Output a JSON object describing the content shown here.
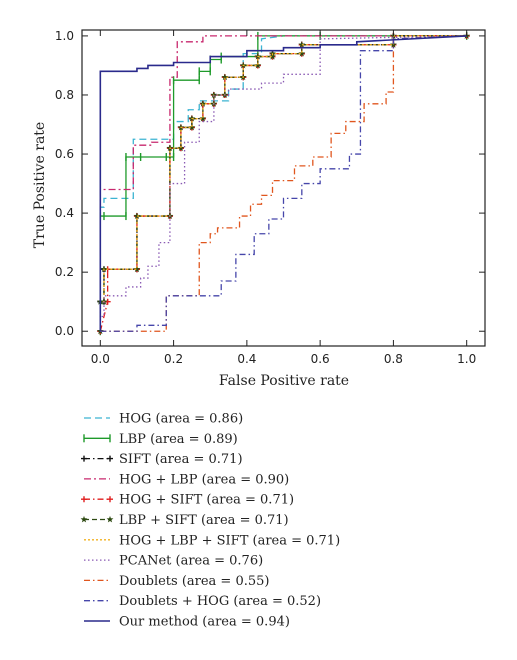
{
  "chart_data": {
    "type": "line",
    "title": "",
    "xlabel": "False Positive rate",
    "ylabel": "True Positive rate",
    "xlim": [
      -0.05,
      1.05
    ],
    "ylim": [
      -0.05,
      1.02
    ],
    "xticks": [
      "0.0",
      "0.2",
      "0.4",
      "0.6",
      "0.8",
      "1.0"
    ],
    "yticks": [
      "0.0",
      "0.2",
      "0.4",
      "0.6",
      "0.8",
      "1.0"
    ],
    "grid": false,
    "legend_position": "below",
    "series": [
      {
        "name": "HOG (area  =  0.86)",
        "color": "#3cb4d2",
        "dash": "7,4",
        "marker": "none",
        "x": [
          0,
          0,
          0.01,
          0.01,
          0.09,
          0.09,
          0.18,
          0.2,
          0.2,
          0.24,
          0.24,
          0.27,
          0.27,
          0.35,
          0.35,
          0.39,
          0.39,
          0.44,
          0.44,
          0.5,
          1.0
        ],
        "y": [
          0,
          0.42,
          0.42,
          0.45,
          0.45,
          0.65,
          0.65,
          0.65,
          0.71,
          0.71,
          0.75,
          0.75,
          0.78,
          0.78,
          0.82,
          0.82,
          0.94,
          0.94,
          0.99,
          1.0,
          1.0
        ]
      },
      {
        "name": "LBP (area  =  0.89)",
        "color": "#1e9a2a",
        "dash": "",
        "marker": "bar",
        "x": [
          0,
          0,
          0.01,
          0.01,
          0.07,
          0.07,
          0.11,
          0.11,
          0.18,
          0.2,
          0.2,
          0.27,
          0.27,
          0.3,
          0.3,
          0.33,
          0.33,
          0.43,
          0.43,
          0.6,
          1.0
        ],
        "y": [
          0,
          0.39,
          0.39,
          0.39,
          0.39,
          0.59,
          0.59,
          0.59,
          0.59,
          0.59,
          0.85,
          0.85,
          0.88,
          0.88,
          0.92,
          0.92,
          0.93,
          0.93,
          1.0,
          1.0,
          1.0
        ]
      },
      {
        "name": "SIFT (area  =  0.71)",
        "color": "#111111",
        "dash": "6,3,1.5,3",
        "marker": "plus",
        "x": [
          0,
          0,
          0.01,
          0.01,
          0.1,
          0.1,
          0.19,
          0.19,
          0.22,
          0.22,
          0.25,
          0.25,
          0.28,
          0.28,
          0.31,
          0.31,
          0.34,
          0.34,
          0.39,
          0.39,
          0.43,
          0.43,
          0.47,
          0.47,
          0.55,
          0.55,
          0.8,
          0.8,
          1.0
        ],
        "y": [
          0,
          0.1,
          0.1,
          0.21,
          0.21,
          0.39,
          0.39,
          0.62,
          0.62,
          0.69,
          0.69,
          0.72,
          0.72,
          0.77,
          0.77,
          0.8,
          0.8,
          0.86,
          0.86,
          0.9,
          0.9,
          0.93,
          0.93,
          0.94,
          0.94,
          0.97,
          0.97,
          1.0,
          1.0
        ]
      },
      {
        "name": "HOG + LBP (area  =  0.90)",
        "color": "#c8286e",
        "dash": "7,3,2,3",
        "marker": "none",
        "x": [
          0,
          0,
          0.02,
          0.02,
          0.09,
          0.09,
          0.14,
          0.14,
          0.19,
          0.19,
          0.21,
          0.21,
          0.28,
          0.28,
          0.45,
          1.0
        ],
        "y": [
          0,
          0.48,
          0.48,
          0.48,
          0.48,
          0.63,
          0.63,
          0.64,
          0.64,
          0.86,
          0.86,
          0.98,
          0.98,
          1.0,
          1.0,
          1.0
        ]
      },
      {
        "name": "HOG + SIFT (area  =  0.71)",
        "color": "#e01e1e",
        "dash": "6,3,1.5,3",
        "marker": "plus",
        "x": [
          0,
          0.02,
          0.02,
          0.1,
          0.1,
          0.19,
          0.19,
          0.22,
          0.22,
          0.25,
          0.25,
          0.28,
          0.28,
          0.31,
          0.31,
          0.34,
          0.34,
          0.39,
          0.39,
          0.43,
          0.43,
          0.47,
          0.47,
          0.55,
          0.55,
          0.8,
          0.8,
          1.0
        ],
        "y": [
          0,
          0.1,
          0.21,
          0.21,
          0.39,
          0.39,
          0.62,
          0.62,
          0.69,
          0.69,
          0.72,
          0.72,
          0.77,
          0.77,
          0.8,
          0.8,
          0.86,
          0.86,
          0.9,
          0.9,
          0.93,
          0.93,
          0.94,
          0.94,
          0.97,
          0.97,
          1.0,
          1.0
        ]
      },
      {
        "name": "LBP + SIFT (area  =  0.71)",
        "color": "#2e4a12",
        "dash": "5,3",
        "marker": "star",
        "x": [
          0,
          0,
          0.01,
          0.01,
          0.1,
          0.1,
          0.19,
          0.19,
          0.22,
          0.22,
          0.25,
          0.25,
          0.28,
          0.28,
          0.31,
          0.31,
          0.34,
          0.34,
          0.39,
          0.39,
          0.43,
          0.43,
          0.47,
          0.47,
          0.55,
          0.55,
          0.8,
          0.8,
          1.0
        ],
        "y": [
          0,
          0.1,
          0.1,
          0.21,
          0.21,
          0.39,
          0.39,
          0.62,
          0.62,
          0.69,
          0.69,
          0.72,
          0.72,
          0.77,
          0.77,
          0.8,
          0.8,
          0.86,
          0.86,
          0.9,
          0.9,
          0.93,
          0.93,
          0.94,
          0.94,
          0.97,
          0.97,
          1.0,
          1.0
        ]
      },
      {
        "name": "HOG + LBP + SIFT (area  =  0.71)",
        "color": "#f2b01e",
        "dash": "2,2",
        "marker": "none",
        "x": [
          0,
          0,
          0.01,
          0.01,
          0.1,
          0.1,
          0.19,
          0.19,
          0.22,
          0.22,
          0.25,
          0.25,
          0.28,
          0.28,
          0.31,
          0.31,
          0.34,
          0.34,
          0.39,
          0.39,
          0.43,
          0.43,
          0.47,
          0.47,
          0.55,
          0.55,
          0.8,
          0.8,
          1.0
        ],
        "y": [
          0,
          0.1,
          0.1,
          0.21,
          0.21,
          0.39,
          0.39,
          0.62,
          0.62,
          0.69,
          0.69,
          0.72,
          0.72,
          0.77,
          0.77,
          0.8,
          0.8,
          0.86,
          0.86,
          0.9,
          0.9,
          0.93,
          0.93,
          0.94,
          0.94,
          0.97,
          0.97,
          1.0,
          1.0
        ]
      },
      {
        "name": "PCANet (area  =  0.76)",
        "color": "#8a5ab4",
        "dash": "1.5,2.5",
        "marker": "none",
        "x": [
          0,
          0,
          0.01,
          0.01,
          0.07,
          0.07,
          0.11,
          0.11,
          0.13,
          0.13,
          0.16,
          0.16,
          0.19,
          0.19,
          0.23,
          0.23,
          0.27,
          0.27,
          0.31,
          0.31,
          0.35,
          0.35,
          0.44,
          0.44,
          0.5,
          0.5,
          0.6,
          0.6,
          1.0
        ],
        "y": [
          0,
          0.05,
          0.05,
          0.12,
          0.12,
          0.15,
          0.15,
          0.18,
          0.18,
          0.22,
          0.22,
          0.3,
          0.3,
          0.5,
          0.5,
          0.64,
          0.64,
          0.71,
          0.71,
          0.8,
          0.8,
          0.82,
          0.82,
          0.84,
          0.84,
          0.87,
          0.87,
          0.99,
          1.0
        ]
      },
      {
        "name": "Doublets (area  =  0.55)",
        "color": "#e0561e",
        "dash": "6,3,1.5,3",
        "marker": "none",
        "x": [
          0,
          0.18,
          0.18,
          0.27,
          0.27,
          0.3,
          0.3,
          0.32,
          0.32,
          0.38,
          0.38,
          0.41,
          0.41,
          0.44,
          0.44,
          0.47,
          0.47,
          0.53,
          0.53,
          0.58,
          0.58,
          0.63,
          0.63,
          0.67,
          0.67,
          0.72,
          0.72,
          0.78,
          0.78,
          0.8,
          0.8,
          1.0
        ],
        "y": [
          0,
          0.0,
          0.12,
          0.12,
          0.3,
          0.3,
          0.33,
          0.33,
          0.35,
          0.35,
          0.39,
          0.39,
          0.43,
          0.43,
          0.46,
          0.46,
          0.51,
          0.51,
          0.56,
          0.56,
          0.59,
          0.59,
          0.67,
          0.67,
          0.71,
          0.71,
          0.77,
          0.77,
          0.81,
          0.81,
          0.99,
          1.0
        ]
      },
      {
        "name": "Doublets + HOG (area  =  0.52)",
        "color": "#4646aa",
        "dash": "6,3,1.5,3",
        "marker": "none",
        "x": [
          0,
          0.1,
          0.1,
          0.18,
          0.18,
          0.24,
          0.24,
          0.33,
          0.33,
          0.37,
          0.37,
          0.42,
          0.42,
          0.46,
          0.46,
          0.5,
          0.5,
          0.55,
          0.55,
          0.6,
          0.6,
          0.68,
          0.68,
          0.71,
          0.71,
          0.8,
          0.8,
          1.0
        ],
        "y": [
          0,
          0.0,
          0.02,
          0.02,
          0.12,
          0.12,
          0.12,
          0.12,
          0.17,
          0.17,
          0.26,
          0.26,
          0.33,
          0.33,
          0.38,
          0.38,
          0.45,
          0.45,
          0.5,
          0.5,
          0.55,
          0.55,
          0.6,
          0.6,
          0.95,
          0.95,
          0.99,
          1.0
        ]
      },
      {
        "name": "Our method (area  =  0.94)",
        "color": "#2a2a8c",
        "dash": "",
        "marker": "none",
        "x": [
          0,
          0,
          0.1,
          0.1,
          0.13,
          0.13,
          0.2,
          0.2,
          0.3,
          0.3,
          0.4,
          0.4,
          0.5,
          0.5,
          0.6,
          0.6,
          0.7,
          0.7,
          1.0
        ],
        "y": [
          0,
          0.88,
          0.88,
          0.89,
          0.89,
          0.9,
          0.9,
          0.91,
          0.91,
          0.93,
          0.93,
          0.95,
          0.95,
          0.96,
          0.96,
          0.97,
          0.97,
          0.98,
          1.0
        ]
      }
    ]
  }
}
